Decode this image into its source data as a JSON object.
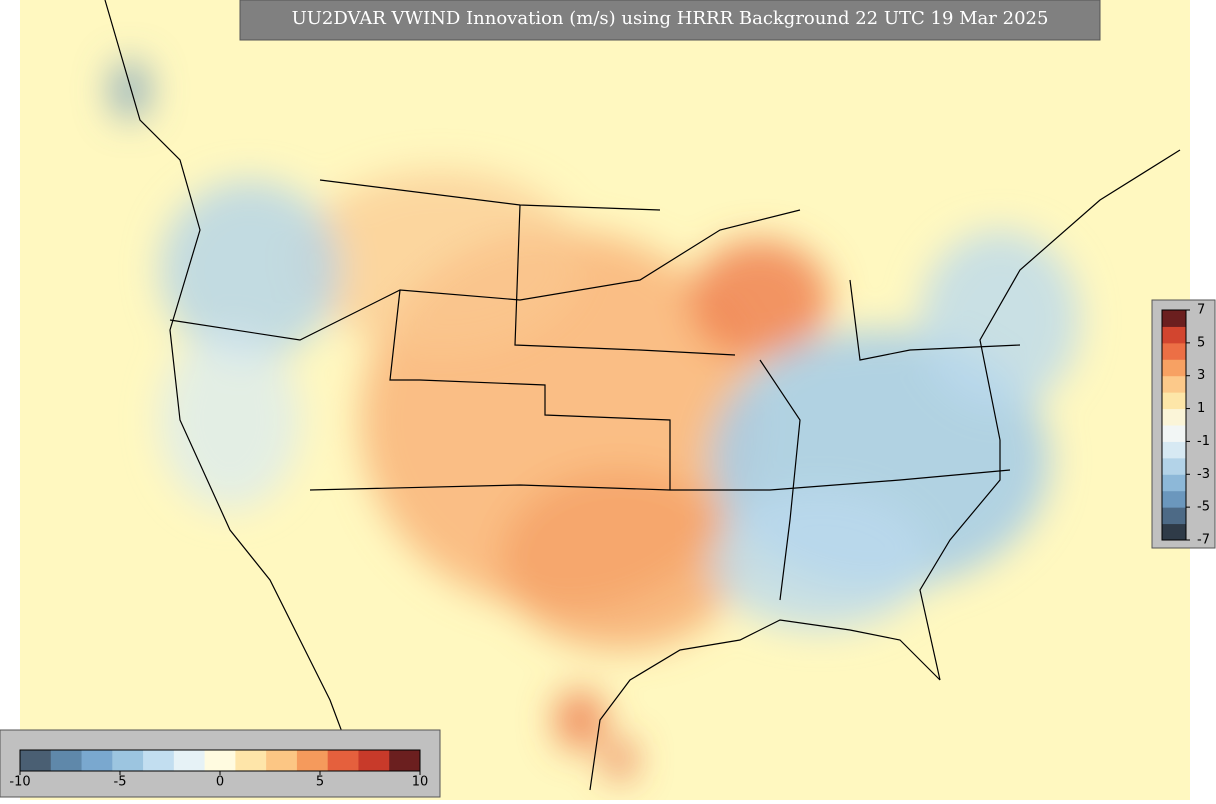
{
  "title": "UU2DVAR VWIND Innovation (m/s) using HRRR Background 22 UTC 19 Mar 2025",
  "colorbars": [
    {
      "orientation": "vertical",
      "lim": [
        -7,
        7
      ],
      "ticks": [
        7,
        5,
        3,
        1,
        -1,
        -3,
        -5,
        -7
      ],
      "colors": [
        "#2f3b48",
        "#4d6a86",
        "#6b97bd",
        "#8db8d8",
        "#b3d3e8",
        "#d7e9f3",
        "#f2f6f5",
        "#fbf5d8",
        "#fde6a8",
        "#fcc98a",
        "#f7a163",
        "#ec6f45",
        "#d2452f",
        "#6b1f1f"
      ]
    },
    {
      "orientation": "horizontal",
      "lim": [
        -10,
        10
      ],
      "ticks": [
        -10,
        -5,
        0,
        5,
        10
      ],
      "colors": [
        "#4a5f73",
        "#5f88aa",
        "#7aa8cf",
        "#9cc5e0",
        "#c2def0",
        "#e6f2f6",
        "#fffbe0",
        "#fee5a9",
        "#fcc684",
        "#f59a5c",
        "#e5603d",
        "#c83a2a",
        "#6b1f1f"
      ]
    }
  ]
}
